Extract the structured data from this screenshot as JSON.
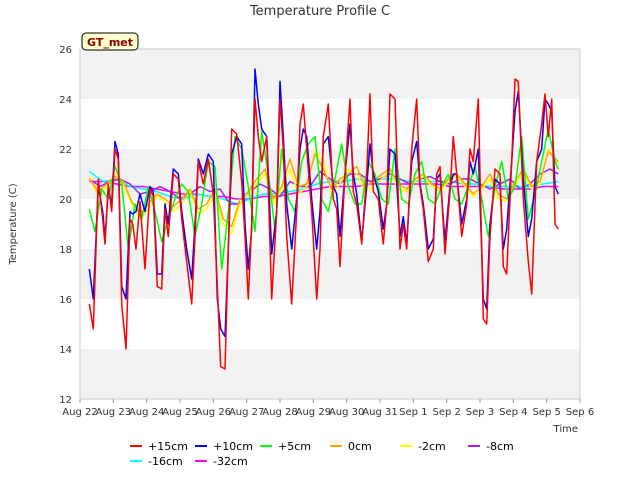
{
  "chart_data": {
    "type": "line",
    "title": "Temperature Profile C",
    "xlabel": "Time",
    "ylabel": "Temperature (C)",
    "badge": "GT_met",
    "ylim": [
      12,
      26
    ],
    "yticks": [
      12,
      14,
      16,
      18,
      20,
      22,
      24,
      26
    ],
    "xlim": [
      0,
      15
    ],
    "xticks": [
      {
        "pos": 0,
        "label": "Aug 22"
      },
      {
        "pos": 1,
        "label": "Aug 23"
      },
      {
        "pos": 2,
        "label": "Aug 24"
      },
      {
        "pos": 3,
        "label": "Aug 25"
      },
      {
        "pos": 4,
        "label": "Aug 26"
      },
      {
        "pos": 5,
        "label": "Aug 27"
      },
      {
        "pos": 6,
        "label": "Aug 28"
      },
      {
        "pos": 7,
        "label": "Aug 29"
      },
      {
        "pos": 8,
        "label": "Aug 30"
      },
      {
        "pos": 9,
        "label": "Aug 31"
      },
      {
        "pos": 10,
        "label": "Sep 1"
      },
      {
        "pos": 11,
        "label": "Sep 2"
      },
      {
        "pos": 12,
        "label": "Sep 3"
      },
      {
        "pos": 13,
        "label": "Sep 4"
      },
      {
        "pos": 14,
        "label": "Sep 5"
      },
      {
        "pos": 15,
        "label": "Sep 6"
      }
    ],
    "grid": "horizontal bands",
    "legend_position": "bottom",
    "series": [
      {
        "name": "+15cm",
        "color": "#ff0000",
        "x": [
          0.28,
          0.4,
          0.55,
          0.68,
          0.75,
          0.85,
          0.95,
          1.05,
          1.15,
          1.25,
          1.38,
          1.5,
          1.58,
          1.68,
          1.8,
          1.95,
          2.1,
          2.2,
          2.32,
          2.45,
          2.55,
          2.65,
          2.8,
          2.95,
          3.05,
          3.2,
          3.35,
          3.45,
          3.55,
          3.7,
          3.85,
          4.0,
          4.12,
          4.22,
          4.35,
          4.45,
          4.55,
          4.7,
          4.85,
          4.95,
          5.05,
          5.15,
          5.25,
          5.35,
          5.45,
          5.6,
          5.75,
          5.9,
          6.0,
          6.1,
          6.2,
          6.35,
          6.5,
          6.6,
          6.7,
          6.8,
          6.95,
          7.1,
          7.2,
          7.3,
          7.45,
          7.6,
          7.7,
          7.8,
          7.95,
          8.1,
          8.2,
          8.3,
          8.45,
          8.6,
          8.7,
          8.8,
          8.95,
          9.1,
          9.2,
          9.3,
          9.45,
          9.6,
          9.7,
          9.8,
          9.95,
          10.1,
          10.2,
          10.3,
          10.45,
          10.6,
          10.7,
          10.8,
          10.95,
          11.1,
          11.2,
          11.3,
          11.45,
          11.6,
          11.7,
          11.8,
          11.95,
          12.1,
          12.2,
          12.3,
          12.45,
          12.6,
          12.7,
          12.8,
          12.95,
          13.05,
          13.15,
          13.3,
          13.45,
          13.55,
          13.7,
          13.85,
          13.95,
          14.05,
          14.15,
          14.25,
          14.35
        ],
        "y": [
          15.8,
          14.8,
          20.8,
          19.2,
          18.2,
          20.6,
          19.5,
          22.0,
          21.6,
          15.8,
          14.0,
          19.2,
          19.0,
          18.0,
          19.9,
          17.2,
          20.4,
          20.1,
          16.5,
          16.4,
          19.6,
          18.5,
          21.0,
          20.8,
          19.2,
          17.5,
          15.8,
          18.5,
          21.5,
          20.6,
          21.6,
          20.2,
          16.5,
          13.3,
          13.2,
          18.0,
          22.8,
          22.6,
          20.7,
          18.5,
          16.0,
          19.0,
          24.0,
          22.5,
          21.5,
          22.5,
          16.0,
          19.5,
          24.0,
          22.0,
          18.5,
          15.8,
          19.5,
          23.0,
          23.8,
          22.0,
          19.5,
          16.0,
          18.0,
          22.5,
          23.8,
          20.0,
          19.6,
          17.3,
          21.0,
          24.0,
          20.3,
          19.8,
          18.2,
          21.0,
          24.2,
          20.3,
          20.0,
          18.2,
          19.8,
          24.2,
          24.0,
          18.0,
          19.0,
          18.0,
          22.0,
          24.0,
          20.5,
          19.6,
          17.5,
          18.0,
          21.0,
          21.3,
          17.8,
          20.3,
          22.5,
          21.0,
          18.5,
          19.8,
          22.0,
          21.5,
          24.0,
          15.2,
          15.0,
          18.5,
          21.2,
          21.0,
          17.3,
          17.0,
          21.5,
          24.8,
          24.7,
          20.0,
          17.5,
          16.2,
          21.5,
          23.0,
          24.2,
          22.5,
          24.0,
          19.0,
          18.8
        ]
      },
      {
        "name": "+10cm",
        "color": "#0000ff",
        "x": [
          0.28,
          0.4,
          0.55,
          0.68,
          0.75,
          0.85,
          0.95,
          1.05,
          1.15,
          1.25,
          1.38,
          1.5,
          1.58,
          1.68,
          1.8,
          1.95,
          2.1,
          2.2,
          2.32,
          2.45,
          2.55,
          2.65,
          2.8,
          2.95,
          3.05,
          3.2,
          3.35,
          3.45,
          3.55,
          3.7,
          3.85,
          4.0,
          4.12,
          4.22,
          4.35,
          4.45,
          4.55,
          4.7,
          4.85,
          4.95,
          5.05,
          5.15,
          5.25,
          5.35,
          5.45,
          5.6,
          5.75,
          5.9,
          6.0,
          6.1,
          6.2,
          6.35,
          6.5,
          6.6,
          6.7,
          6.8,
          6.95,
          7.1,
          7.2,
          7.3,
          7.45,
          7.6,
          7.7,
          7.8,
          7.95,
          8.1,
          8.2,
          8.3,
          8.45,
          8.6,
          8.7,
          8.8,
          8.95,
          9.1,
          9.2,
          9.3,
          9.45,
          9.6,
          9.7,
          9.8,
          9.95,
          10.1,
          10.2,
          10.3,
          10.45,
          10.6,
          10.7,
          10.8,
          10.95,
          11.1,
          11.2,
          11.3,
          11.45,
          11.6,
          11.7,
          11.8,
          11.95,
          12.1,
          12.2,
          12.3,
          12.45,
          12.6,
          12.7,
          12.8,
          12.95,
          13.05,
          13.15,
          13.3,
          13.45,
          13.55,
          13.7,
          13.85,
          13.95,
          14.05,
          14.15,
          14.25,
          14.35
        ],
        "y": [
          17.2,
          16.0,
          20.5,
          19.5,
          18.4,
          20.4,
          19.8,
          22.3,
          21.8,
          16.5,
          16.0,
          19.5,
          19.4,
          19.5,
          20.2,
          19.5,
          20.5,
          20.3,
          17.0,
          17.0,
          19.8,
          19.0,
          21.2,
          21.0,
          19.5,
          18.0,
          16.8,
          19.0,
          21.6,
          21.0,
          21.8,
          21.5,
          16.0,
          14.8,
          14.5,
          18.0,
          21.8,
          22.5,
          22.2,
          19.0,
          17.2,
          18.8,
          25.2,
          23.8,
          22.8,
          22.5,
          17.8,
          19.5,
          24.7,
          22.5,
          19.8,
          18.0,
          20.0,
          22.0,
          22.8,
          22.5,
          20.0,
          18.0,
          19.5,
          22.2,
          22.5,
          20.5,
          20.2,
          18.5,
          21.0,
          23.0,
          21.0,
          20.2,
          18.3,
          20.5,
          22.2,
          21.0,
          20.3,
          18.8,
          19.8,
          22.0,
          21.8,
          18.5,
          19.3,
          18.2,
          21.5,
          22.3,
          20.6,
          19.8,
          18.0,
          18.4,
          20.8,
          21.0,
          18.3,
          20.5,
          21.0,
          21.0,
          19.0,
          20.0,
          21.5,
          21.0,
          22.0,
          16.0,
          15.6,
          19.0,
          20.8,
          20.6,
          18.0,
          18.8,
          21.5,
          23.5,
          24.3,
          20.8,
          18.5,
          19.2,
          21.5,
          22.0,
          24.0,
          23.8,
          23.5,
          20.5,
          20.2
        ]
      },
      {
        "name": "+5cm",
        "color": "#00ff00",
        "x": [
          0.28,
          0.45,
          0.65,
          0.85,
          1.05,
          1.25,
          1.45,
          1.65,
          1.85,
          2.05,
          2.25,
          2.45,
          2.65,
          2.85,
          3.05,
          3.25,
          3.45,
          3.65,
          3.85,
          4.05,
          4.25,
          4.45,
          4.65,
          4.85,
          5.05,
          5.25,
          5.45,
          5.65,
          5.85,
          6.05,
          6.25,
          6.45,
          6.65,
          6.85,
          7.05,
          7.25,
          7.45,
          7.65,
          7.85,
          8.05,
          8.25,
          8.45,
          8.65,
          8.85,
          9.05,
          9.25,
          9.45,
          9.65,
          9.85,
          10.05,
          10.25,
          10.45,
          10.65,
          10.85,
          11.05,
          11.25,
          11.45,
          11.65,
          11.85,
          12.05,
          12.25,
          12.45,
          12.65,
          12.85,
          13.05,
          13.25,
          13.45,
          13.65,
          13.85,
          14.05,
          14.25,
          14.35
        ],
        "y": [
          19.6,
          18.7,
          20.4,
          20.0,
          21.3,
          20.6,
          18.0,
          19.8,
          19.2,
          20.5,
          19.5,
          18.3,
          19.2,
          20.0,
          20.6,
          20.3,
          18.5,
          19.8,
          21.5,
          21.3,
          17.2,
          19.5,
          22.5,
          22.0,
          20.5,
          18.7,
          22.7,
          21.0,
          18.8,
          22.0,
          20.0,
          19.5,
          21.5,
          22.2,
          22.5,
          20.0,
          19.5,
          20.8,
          22.2,
          20.5,
          19.8,
          19.8,
          21.5,
          21.0,
          20.0,
          19.8,
          22.0,
          20.0,
          19.8,
          21.0,
          21.5,
          20.0,
          19.8,
          20.5,
          21.0,
          20.0,
          19.8,
          20.5,
          21.3,
          20.0,
          18.5,
          20.5,
          21.5,
          20.0,
          20.5,
          22.5,
          19.2,
          20.2,
          21.5,
          22.8,
          21.5,
          21.2
        ]
      },
      {
        "name": "0cm",
        "color": "#ffa500",
        "x": [
          0.28,
          0.55,
          0.8,
          1.05,
          1.3,
          1.55,
          1.8,
          2.05,
          2.3,
          2.55,
          2.8,
          3.05,
          3.3,
          3.55,
          3.8,
          4.05,
          4.3,
          4.55,
          4.8,
          5.05,
          5.3,
          5.55,
          5.8,
          6.05,
          6.3,
          6.55,
          6.8,
          7.05,
          7.3,
          7.55,
          7.8,
          8.05,
          8.3,
          8.55,
          8.8,
          9.05,
          9.3,
          9.55,
          9.8,
          10.05,
          10.3,
          10.55,
          10.8,
          11.05,
          11.3,
          11.55,
          11.8,
          12.05,
          12.3,
          12.55,
          12.8,
          13.05,
          13.3,
          13.55,
          13.8,
          14.05,
          14.35
        ],
        "y": [
          20.8,
          20.3,
          20.6,
          20.9,
          20.7,
          19.9,
          19.4,
          19.8,
          20.2,
          20.0,
          19.7,
          20.0,
          20.4,
          19.6,
          19.8,
          20.4,
          19.2,
          18.9,
          20.0,
          20.3,
          20.8,
          21.2,
          20.0,
          20.5,
          21.6,
          20.5,
          20.6,
          21.8,
          21.2,
          20.4,
          20.8,
          21.0,
          21.3,
          20.5,
          20.7,
          21.0,
          21.2,
          20.6,
          20.4,
          20.8,
          21.0,
          20.6,
          20.4,
          20.8,
          21.0,
          20.6,
          20.2,
          20.5,
          21.0,
          20.2,
          20.0,
          20.7,
          21.2,
          20.5,
          20.7,
          21.9,
          21.5
        ]
      },
      {
        "name": "-2cm",
        "color": "#ffff00",
        "x": [
          0.28,
          0.55,
          0.8,
          1.05,
          1.3,
          1.55,
          1.8,
          2.05,
          2.3,
          2.55,
          2.8,
          3.05,
          3.3,
          3.55,
          3.8,
          4.05,
          4.3,
          4.55,
          4.8,
          5.05,
          5.3,
          5.55,
          5.8,
          6.05,
          6.3,
          6.55,
          6.8,
          7.05,
          7.3,
          7.55,
          7.8,
          8.05,
          8.3,
          8.55,
          8.8,
          9.05,
          9.3,
          9.55,
          9.8,
          10.05,
          10.3,
          10.55,
          10.8,
          11.05,
          11.3,
          11.55,
          11.8,
          12.05,
          12.3,
          12.55,
          12.8,
          13.05,
          13.3,
          13.55,
          13.8,
          14.05,
          14.35
        ],
        "y": [
          20.9,
          20.1,
          20.5,
          21.0,
          20.6,
          19.8,
          19.2,
          19.6,
          20.1,
          19.9,
          19.5,
          19.8,
          20.3,
          19.4,
          19.6,
          20.2,
          19.0,
          18.6,
          19.8,
          20.2,
          20.6,
          21.0,
          19.8,
          20.4,
          21.2,
          20.2,
          20.5,
          21.9,
          21.5,
          20.2,
          20.6,
          21.2,
          21.0,
          20.3,
          20.5,
          20.8,
          21.1,
          20.4,
          20.3,
          20.7,
          20.9,
          20.5,
          20.3,
          20.7,
          20.9,
          20.5,
          20.1,
          20.4,
          20.8,
          20.0,
          19.9,
          20.5,
          21.1,
          20.4,
          20.6,
          22.0,
          21.4
        ]
      },
      {
        "name": "-8cm",
        "color": "#a020f0",
        "x": [
          0.28,
          0.6,
          0.9,
          1.2,
          1.5,
          1.8,
          2.1,
          2.4,
          2.7,
          3.0,
          3.3,
          3.6,
          3.9,
          4.2,
          4.5,
          4.8,
          5.1,
          5.4,
          5.7,
          6.0,
          6.3,
          6.6,
          6.9,
          7.2,
          7.5,
          7.8,
          8.1,
          8.4,
          8.7,
          9.0,
          9.3,
          9.6,
          9.9,
          10.2,
          10.5,
          10.8,
          11.1,
          11.4,
          11.7,
          12.0,
          12.3,
          12.6,
          12.9,
          13.2,
          13.5,
          13.8,
          14.1,
          14.35
        ],
        "y": [
          20.8,
          20.5,
          20.7,
          20.8,
          20.6,
          20.2,
          20.3,
          20.5,
          20.3,
          20.0,
          20.2,
          20.5,
          20.3,
          20.4,
          19.8,
          19.8,
          20.3,
          20.6,
          20.4,
          20.1,
          20.7,
          20.5,
          20.5,
          21.1,
          20.8,
          20.6,
          21.0,
          21.0,
          20.7,
          20.8,
          21.0,
          20.8,
          20.6,
          20.8,
          20.9,
          20.7,
          20.6,
          20.8,
          20.8,
          20.6,
          20.4,
          20.6,
          20.8,
          20.4,
          20.6,
          21.0,
          21.2,
          21.0
        ]
      },
      {
        "name": "-16cm",
        "color": "#00ffff",
        "x": [
          0.28,
          0.7,
          1.1,
          1.5,
          1.9,
          2.3,
          2.7,
          3.1,
          3.5,
          3.9,
          4.3,
          4.7,
          5.1,
          5.5,
          5.9,
          6.3,
          6.7,
          7.1,
          7.5,
          7.9,
          8.3,
          8.7,
          9.1,
          9.5,
          9.9,
          10.3,
          10.7,
          11.1,
          11.5,
          11.9,
          12.3,
          12.7,
          13.1,
          13.5,
          13.9,
          14.35
        ],
        "y": [
          21.1,
          20.7,
          20.8,
          20.5,
          20.4,
          20.3,
          20.1,
          20.0,
          20.2,
          20.1,
          20.0,
          19.8,
          20.0,
          20.2,
          20.2,
          20.3,
          20.4,
          20.6,
          20.7,
          20.7,
          20.8,
          20.7,
          20.8,
          20.8,
          20.7,
          20.7,
          20.7,
          20.7,
          20.6,
          20.6,
          20.5,
          20.5,
          20.5,
          20.5,
          20.6,
          20.7
        ]
      },
      {
        "name": "-32cm",
        "color": "#ff00ff",
        "x": [
          0.28,
          0.7,
          1.1,
          1.5,
          1.9,
          2.3,
          2.7,
          3.1,
          3.5,
          3.9,
          4.3,
          4.7,
          5.1,
          5.5,
          5.9,
          6.3,
          6.7,
          7.1,
          7.5,
          7.9,
          8.3,
          8.7,
          9.1,
          9.5,
          9.9,
          10.3,
          10.7,
          11.1,
          11.5,
          11.9,
          12.3,
          12.7,
          13.1,
          13.5,
          13.9,
          14.35
        ],
        "y": [
          20.7,
          20.7,
          20.6,
          20.5,
          20.5,
          20.4,
          20.3,
          20.2,
          20.2,
          20.1,
          20.1,
          20.0,
          20.0,
          20.1,
          20.1,
          20.2,
          20.3,
          20.4,
          20.5,
          20.5,
          20.5,
          20.6,
          20.6,
          20.6,
          20.6,
          20.6,
          20.6,
          20.5,
          20.5,
          20.5,
          20.5,
          20.4,
          20.4,
          20.4,
          20.5,
          20.5
        ]
      }
    ]
  }
}
